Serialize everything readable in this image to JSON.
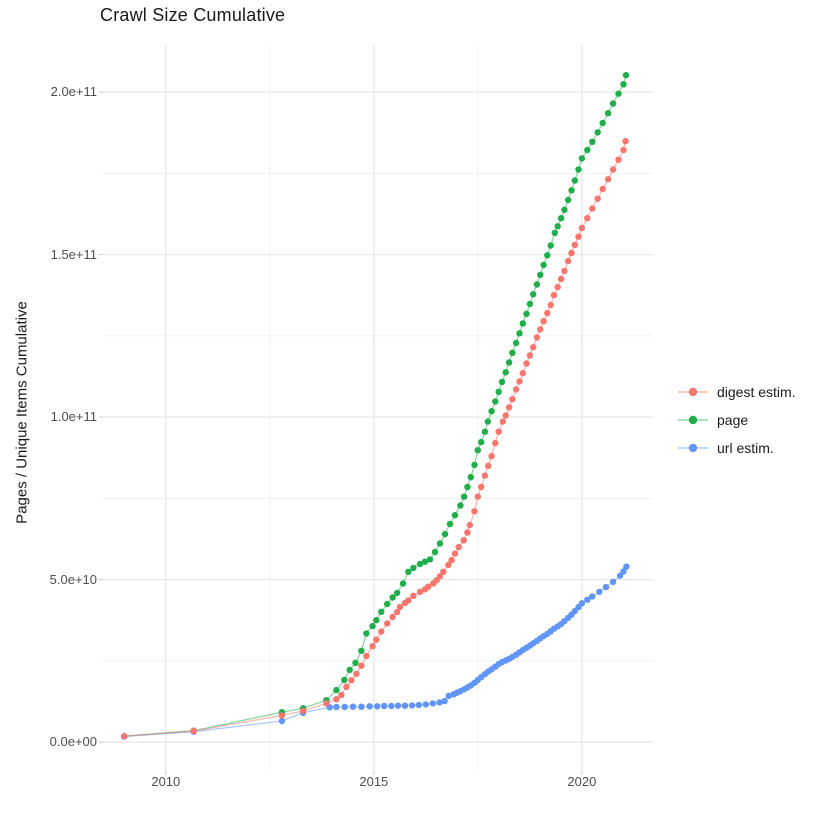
{
  "chart_data": {
    "type": "scatter",
    "title": "Crawl Size Cumulative",
    "xlabel": "",
    "ylabel": "Pages / Unique Items Cumulative",
    "values_unit": "billions (1e9 items); points are [year, value_in_billions]",
    "xlim": [
      2008.49,
      2021.71
    ],
    "ylim_billions": [
      -8.9,
      214.5
    ],
    "grid": true,
    "legend_position": "right",
    "x_ticks": [
      {
        "label": "2010",
        "value": 2010
      },
      {
        "label": "2015",
        "value": 2015
      },
      {
        "label": "2020",
        "value": 2020
      }
    ],
    "x_minor_ticks": [
      2012.5,
      2017.5
    ],
    "y_ticks": [
      {
        "label": "0.0e+00",
        "value": 0
      },
      {
        "label": "5.0e+10",
        "value": 50
      },
      {
        "label": "1.0e+11",
        "value": 100
      },
      {
        "label": "1.5e+11",
        "value": 150
      },
      {
        "label": "2.0e+11",
        "value": 200
      }
    ],
    "y_minor_ticks": [
      25,
      75,
      125,
      175
    ],
    "series": [
      {
        "name": "digest estim.",
        "color": "#F8766D",
        "points": [
          [
            2009.0,
            1.8
          ],
          [
            2010.67,
            3.4
          ],
          [
            2012.79,
            8.2
          ],
          [
            2013.3,
            9.6
          ],
          [
            2013.86,
            11.9
          ],
          [
            2014.1,
            13.2
          ],
          [
            2014.22,
            14.5
          ],
          [
            2014.34,
            17.0
          ],
          [
            2014.46,
            19.0
          ],
          [
            2014.58,
            21.0
          ],
          [
            2014.7,
            23.5
          ],
          [
            2014.82,
            26.5
          ],
          [
            2014.97,
            29.5
          ],
          [
            2015.06,
            31.5
          ],
          [
            2015.18,
            34.0
          ],
          [
            2015.32,
            36.5
          ],
          [
            2015.45,
            38.5
          ],
          [
            2015.56,
            40.0
          ],
          [
            2015.63,
            41.6
          ],
          [
            2015.75,
            42.8
          ],
          [
            2015.83,
            43.6
          ],
          [
            2015.95,
            45.0
          ],
          [
            2016.11,
            46.2
          ],
          [
            2016.23,
            47.0
          ],
          [
            2016.31,
            47.8
          ],
          [
            2016.43,
            48.8
          ],
          [
            2016.51,
            49.8
          ],
          [
            2016.59,
            51.0
          ],
          [
            2016.67,
            52.4
          ],
          [
            2016.79,
            54.5
          ],
          [
            2016.87,
            56.0
          ],
          [
            2016.95,
            58.0
          ],
          [
            2017.04,
            60.0
          ],
          [
            2017.16,
            62.1
          ],
          [
            2017.25,
            64.5
          ],
          [
            2017.31,
            66.8
          ],
          [
            2017.42,
            71.0
          ],
          [
            2017.5,
            75.5
          ],
          [
            2017.58,
            78.5
          ],
          [
            2017.67,
            82.0
          ],
          [
            2017.75,
            85.0
          ],
          [
            2017.83,
            88.0
          ],
          [
            2017.92,
            92.0
          ],
          [
            2018.0,
            95.5
          ],
          [
            2018.1,
            98.6
          ],
          [
            2018.17,
            100.5
          ],
          [
            2018.25,
            103.0
          ],
          [
            2018.33,
            105.5
          ],
          [
            2018.42,
            108.5
          ],
          [
            2018.5,
            111.0
          ],
          [
            2018.58,
            113.5
          ],
          [
            2018.67,
            116.5
          ],
          [
            2018.75,
            119.0
          ],
          [
            2018.83,
            121.5
          ],
          [
            2018.92,
            124.5
          ],
          [
            2019.0,
            127.0
          ],
          [
            2019.08,
            129.5
          ],
          [
            2019.17,
            132.0
          ],
          [
            2019.25,
            134.5
          ],
          [
            2019.33,
            137.5
          ],
          [
            2019.42,
            140.0
          ],
          [
            2019.5,
            142.5
          ],
          [
            2019.58,
            145.0
          ],
          [
            2019.67,
            148.0
          ],
          [
            2019.75,
            150.5
          ],
          [
            2019.83,
            153.0
          ],
          [
            2019.92,
            155.5
          ],
          [
            2020.0,
            158.2
          ],
          [
            2020.13,
            161.2
          ],
          [
            2020.25,
            164.2
          ],
          [
            2020.38,
            167.2
          ],
          [
            2020.5,
            170.2
          ],
          [
            2020.63,
            173.2
          ],
          [
            2020.75,
            176.2
          ],
          [
            2020.88,
            179.2
          ],
          [
            2021.0,
            182.2
          ],
          [
            2021.05,
            184.9
          ]
        ]
      },
      {
        "name": "page",
        "color": "#1FAE4A",
        "points": [
          [
            2009.0,
            1.85
          ],
          [
            2010.67,
            3.5
          ],
          [
            2012.79,
            9.2
          ],
          [
            2013.3,
            10.4
          ],
          [
            2013.86,
            12.9
          ],
          [
            2014.1,
            16.0
          ],
          [
            2014.29,
            19.1
          ],
          [
            2014.42,
            22.2
          ],
          [
            2014.56,
            24.4
          ],
          [
            2014.7,
            28.1
          ],
          [
            2014.82,
            33.4
          ],
          [
            2014.97,
            35.7
          ],
          [
            2015.06,
            37.5
          ],
          [
            2015.18,
            40.1
          ],
          [
            2015.32,
            42.5
          ],
          [
            2015.45,
            44.5
          ],
          [
            2015.56,
            45.9
          ],
          [
            2015.7,
            48.8
          ],
          [
            2015.83,
            52.4
          ],
          [
            2015.95,
            53.6
          ],
          [
            2016.11,
            54.8
          ],
          [
            2016.23,
            55.5
          ],
          [
            2016.35,
            56.2
          ],
          [
            2016.47,
            58.5
          ],
          [
            2016.59,
            61.1
          ],
          [
            2016.71,
            64.0
          ],
          [
            2016.83,
            67.1
          ],
          [
            2016.95,
            69.8
          ],
          [
            2017.08,
            72.8
          ],
          [
            2017.17,
            75.5
          ],
          [
            2017.25,
            78.5
          ],
          [
            2017.33,
            81.5
          ],
          [
            2017.42,
            85.3
          ],
          [
            2017.5,
            89.8
          ],
          [
            2017.58,
            92.3
          ],
          [
            2017.67,
            95.5
          ],
          [
            2017.74,
            98.6
          ],
          [
            2017.83,
            101.8
          ],
          [
            2017.92,
            104.8
          ],
          [
            2018.0,
            107.8
          ],
          [
            2018.08,
            110.8
          ],
          [
            2018.17,
            113.8
          ],
          [
            2018.25,
            116.8
          ],
          [
            2018.33,
            119.8
          ],
          [
            2018.42,
            122.8
          ],
          [
            2018.5,
            125.8
          ],
          [
            2018.58,
            128.8
          ],
          [
            2018.67,
            131.8
          ],
          [
            2018.75,
            134.8
          ],
          [
            2018.83,
            137.8
          ],
          [
            2018.92,
            140.8
          ],
          [
            2019.0,
            143.8
          ],
          [
            2019.08,
            146.8
          ],
          [
            2019.17,
            149.8
          ],
          [
            2019.25,
            152.8
          ],
          [
            2019.35,
            156.7
          ],
          [
            2019.42,
            158.7
          ],
          [
            2019.5,
            161.2
          ],
          [
            2019.58,
            163.8
          ],
          [
            2019.67,
            166.8
          ],
          [
            2019.75,
            169.8
          ],
          [
            2019.83,
            172.8
          ],
          [
            2019.92,
            176.2
          ],
          [
            2020.0,
            179.6
          ],
          [
            2020.13,
            182.2
          ],
          [
            2020.25,
            184.7
          ],
          [
            2020.38,
            187.6
          ],
          [
            2020.5,
            190.5
          ],
          [
            2020.63,
            193.5
          ],
          [
            2020.75,
            196.5
          ],
          [
            2020.88,
            199.5
          ],
          [
            2021.0,
            202.4
          ],
          [
            2021.06,
            205.2
          ]
        ]
      },
      {
        "name": "url estim.",
        "color": "#6195F8",
        "points": [
          [
            2009.0,
            1.7
          ],
          [
            2010.67,
            3.2
          ],
          [
            2012.79,
            6.5
          ],
          [
            2013.3,
            9.0
          ],
          [
            2013.94,
            10.7
          ],
          [
            2014.1,
            10.8
          ],
          [
            2014.3,
            10.8
          ],
          [
            2014.5,
            10.9
          ],
          [
            2014.7,
            10.9
          ],
          [
            2014.9,
            11.0
          ],
          [
            2015.08,
            11.0
          ],
          [
            2015.25,
            11.1
          ],
          [
            2015.42,
            11.1
          ],
          [
            2015.58,
            11.2
          ],
          [
            2015.75,
            11.2
          ],
          [
            2015.92,
            11.3
          ],
          [
            2016.08,
            11.4
          ],
          [
            2016.25,
            11.6
          ],
          [
            2016.42,
            11.9
          ],
          [
            2016.58,
            12.2
          ],
          [
            2016.7,
            12.6
          ],
          [
            2016.8,
            14.2
          ],
          [
            2016.92,
            14.7
          ],
          [
            2017.0,
            15.2
          ],
          [
            2017.08,
            15.7
          ],
          [
            2017.17,
            16.2
          ],
          [
            2017.25,
            16.8
          ],
          [
            2017.33,
            17.4
          ],
          [
            2017.42,
            18.2
          ],
          [
            2017.5,
            19.1
          ],
          [
            2017.58,
            20.0
          ],
          [
            2017.67,
            20.9
          ],
          [
            2017.75,
            21.7
          ],
          [
            2017.83,
            22.4
          ],
          [
            2017.92,
            23.2
          ],
          [
            2018.0,
            24.0
          ],
          [
            2018.08,
            24.6
          ],
          [
            2018.17,
            25.1
          ],
          [
            2018.25,
            25.6
          ],
          [
            2018.33,
            26.2
          ],
          [
            2018.42,
            26.9
          ],
          [
            2018.5,
            27.6
          ],
          [
            2018.58,
            28.3
          ],
          [
            2018.67,
            29.0
          ],
          [
            2018.75,
            29.7
          ],
          [
            2018.83,
            30.4
          ],
          [
            2018.92,
            31.1
          ],
          [
            2019.0,
            31.9
          ],
          [
            2019.08,
            32.6
          ],
          [
            2019.17,
            33.3
          ],
          [
            2019.25,
            34.1
          ],
          [
            2019.33,
            34.9
          ],
          [
            2019.42,
            35.6
          ],
          [
            2019.5,
            36.3
          ],
          [
            2019.58,
            37.2
          ],
          [
            2019.67,
            38.2
          ],
          [
            2019.75,
            39.2
          ],
          [
            2019.83,
            40.3
          ],
          [
            2019.92,
            41.5
          ],
          [
            2020.0,
            42.7
          ],
          [
            2020.13,
            43.8
          ],
          [
            2020.25,
            44.8
          ],
          [
            2020.42,
            46.2
          ],
          [
            2020.58,
            47.7
          ],
          [
            2020.75,
            49.3
          ],
          [
            2020.92,
            51.2
          ],
          [
            2021.0,
            52.5
          ],
          [
            2021.07,
            54.0
          ]
        ]
      }
    ]
  }
}
